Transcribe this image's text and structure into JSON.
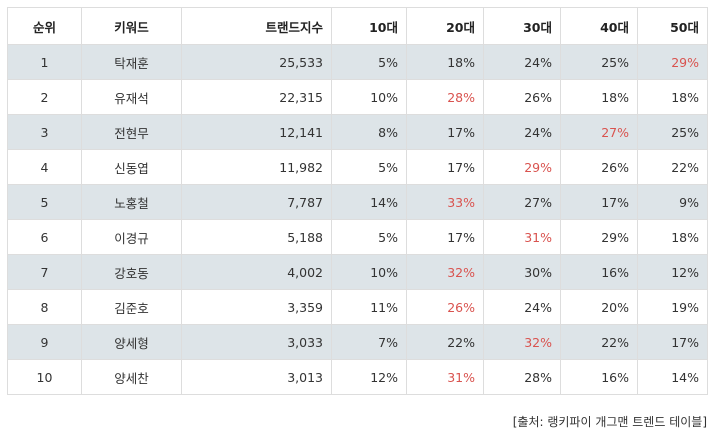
{
  "table": {
    "headers": [
      "순위",
      "키워드",
      "트랜드지수",
      "10대",
      "20대",
      "30대",
      "40대",
      "50대"
    ],
    "rows": [
      {
        "rank": "1",
        "keyword": "탁재훈",
        "index": "25,533",
        "age10": "5%",
        "age20": "18%",
        "age30": "24%",
        "age40": "25%",
        "age50": "29%",
        "highlight": "age50"
      },
      {
        "rank": "2",
        "keyword": "유재석",
        "index": "22,315",
        "age10": "10%",
        "age20": "28%",
        "age30": "26%",
        "age40": "18%",
        "age50": "18%",
        "highlight": "age20"
      },
      {
        "rank": "3",
        "keyword": "전현무",
        "index": "12,141",
        "age10": "8%",
        "age20": "17%",
        "age30": "24%",
        "age40": "27%",
        "age50": "25%",
        "highlight": "age40"
      },
      {
        "rank": "4",
        "keyword": "신동엽",
        "index": "11,982",
        "age10": "5%",
        "age20": "17%",
        "age30": "29%",
        "age40": "26%",
        "age50": "22%",
        "highlight": "age30"
      },
      {
        "rank": "5",
        "keyword": "노홍철",
        "index": "7,787",
        "age10": "14%",
        "age20": "33%",
        "age30": "27%",
        "age40": "17%",
        "age50": "9%",
        "highlight": "age20"
      },
      {
        "rank": "6",
        "keyword": "이경규",
        "index": "5,188",
        "age10": "5%",
        "age20": "17%",
        "age30": "31%",
        "age40": "29%",
        "age50": "18%",
        "highlight": "age30"
      },
      {
        "rank": "7",
        "keyword": "강호동",
        "index": "4,002",
        "age10": "10%",
        "age20": "32%",
        "age30": "30%",
        "age40": "16%",
        "age50": "12%",
        "highlight": "age20"
      },
      {
        "rank": "8",
        "keyword": "김준호",
        "index": "3,359",
        "age10": "11%",
        "age20": "26%",
        "age30": "24%",
        "age40": "20%",
        "age50": "19%",
        "highlight": "age20"
      },
      {
        "rank": "9",
        "keyword": "양세형",
        "index": "3,033",
        "age10": "7%",
        "age20": "22%",
        "age30": "32%",
        "age40": "22%",
        "age50": "17%",
        "highlight": "age30"
      },
      {
        "rank": "10",
        "keyword": "양세찬",
        "index": "3,013",
        "age10": "12%",
        "age20": "31%",
        "age30": "28%",
        "age40": "16%",
        "age50": "14%",
        "highlight": "age20"
      }
    ]
  },
  "source": "[출처: 랭키파이 개그맨 트렌드 테이블]",
  "colors": {
    "highlight": "#d9534f",
    "row_shade": "#dde4e8",
    "border": "#dddddd"
  }
}
